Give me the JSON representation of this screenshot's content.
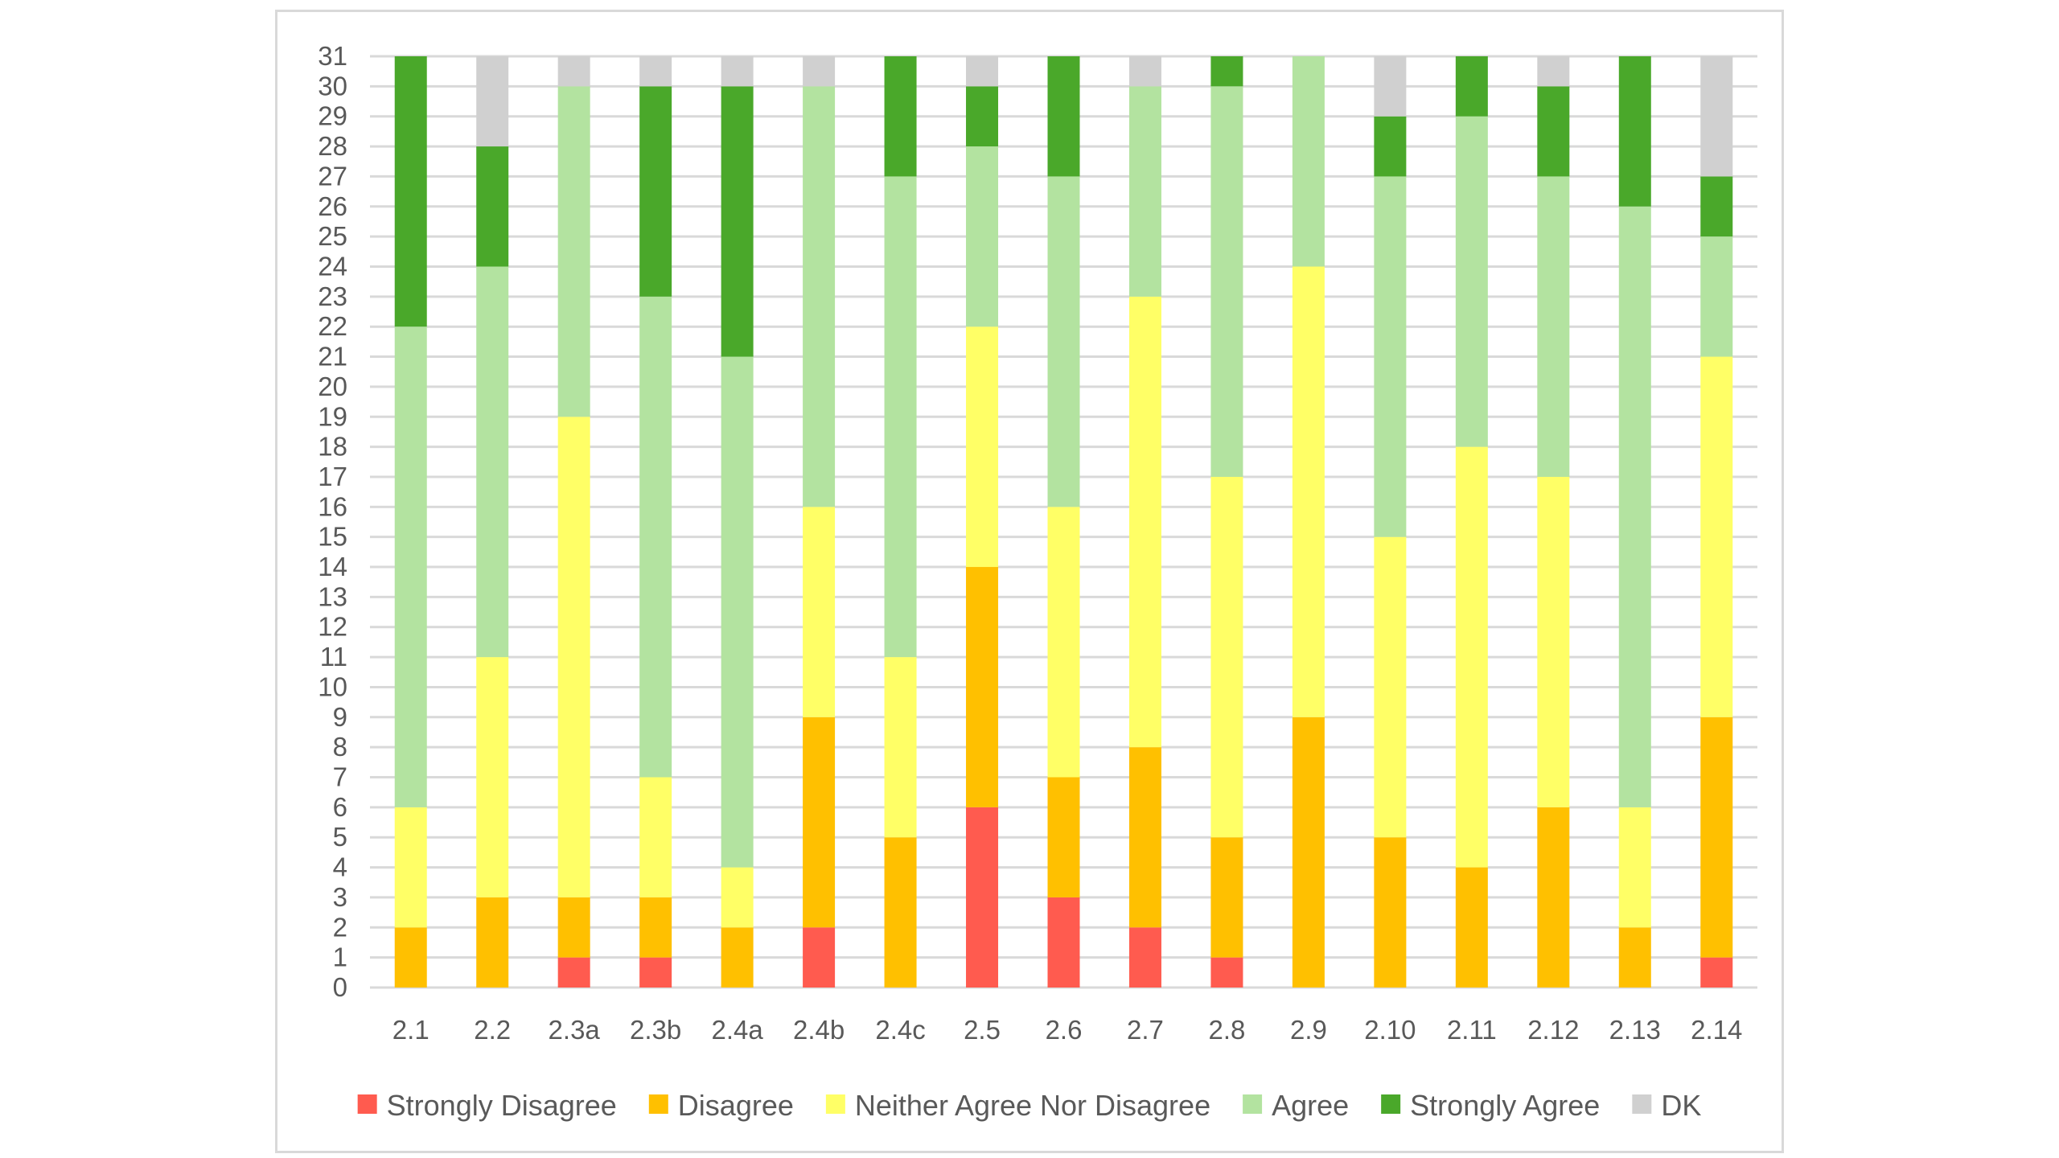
{
  "chart_data": {
    "type": "bar",
    "stacked": true,
    "categories": [
      "2.1",
      "2.2",
      "2.3a",
      "2.3b",
      "2.4a",
      "2.4b",
      "2.4c",
      "2.5",
      "2.6",
      "2.7",
      "2.8",
      "2.9",
      "2.10",
      "2.11",
      "2.12",
      "2.13",
      "2.14"
    ],
    "series": [
      {
        "name": "Strongly Disagree",
        "color": "#ff5b4f",
        "values": [
          0,
          0,
          1,
          1,
          0,
          2,
          0,
          6,
          3,
          2,
          1,
          0,
          0,
          0,
          0,
          0,
          1
        ]
      },
      {
        "name": "Disagree",
        "color": "#ffc000",
        "values": [
          2,
          3,
          2,
          2,
          2,
          7,
          5,
          8,
          4,
          6,
          4,
          9,
          5,
          4,
          6,
          2,
          8
        ]
      },
      {
        "name": "Neither Agree Nor Disagree",
        "color": "#ffff66",
        "values": [
          4,
          8,
          16,
          4,
          2,
          7,
          6,
          8,
          9,
          15,
          12,
          15,
          10,
          14,
          11,
          4,
          12
        ]
      },
      {
        "name": "Agree",
        "color": "#b3e3a0",
        "values": [
          16,
          13,
          11,
          16,
          17,
          14,
          16,
          6,
          11,
          7,
          13,
          7,
          12,
          11,
          10,
          20,
          4
        ]
      },
      {
        "name": "Strongly Agree",
        "color": "#4aa82a",
        "values": [
          9,
          4,
          0,
          7,
          9,
          0,
          4,
          2,
          4,
          0,
          1,
          0,
          2,
          2,
          3,
          5,
          2
        ]
      },
      {
        "name": "DK",
        "color": "#d0d0d0",
        "values": [
          0,
          3,
          1,
          1,
          1,
          1,
          0,
          1,
          0,
          1,
          0,
          0,
          2,
          0,
          1,
          0,
          4
        ]
      }
    ],
    "y_ticks": [
      "0",
      "1",
      "2",
      "3",
      "4",
      "5",
      "6",
      "7",
      "8",
      "9",
      "10",
      "11",
      "12",
      "13",
      "14",
      "15",
      "16",
      "17",
      "18",
      "19",
      "20",
      "21",
      "22",
      "23",
      "24",
      "25",
      "26",
      "27",
      "28",
      "29",
      "30",
      "31"
    ],
    "ylim": [
      0,
      31
    ],
    "title": "",
    "xlabel": "",
    "ylabel": "",
    "grid": true,
    "legend_position": "bottom"
  }
}
